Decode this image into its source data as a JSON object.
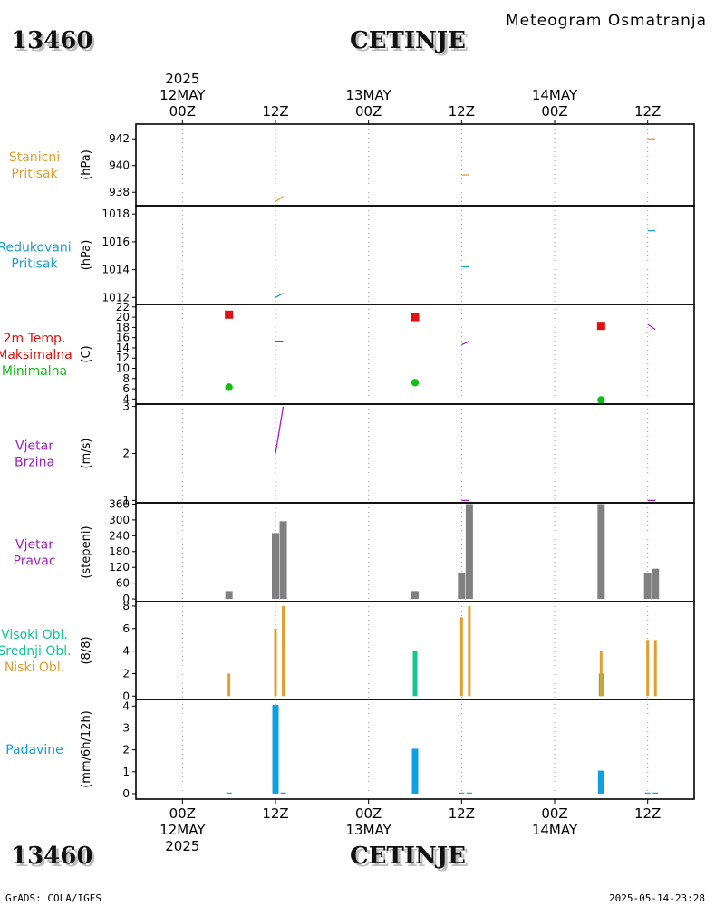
{
  "header": {
    "station_id": "13460",
    "station_name": "CETINJE",
    "subtitle": "Meteogram Osmatranja",
    "year": "2025"
  },
  "footer": {
    "station_id": "13460",
    "station_name": "CETINJE",
    "year": "2025",
    "software": "GrADS: COLA/IGES",
    "timestamp": "2025-05-14-23:28"
  },
  "colors": {
    "orange": "#e0a030",
    "cyan": "#1aa0d0",
    "red": "#e01010",
    "green": "#10c010",
    "purple": "#a020c0",
    "gray": "#808080",
    "teal": "#10c890",
    "blue": "#10a0e0"
  },
  "chart_data": {
    "type": "meteogram",
    "x_axis": {
      "unit": "hours since 2025-05-12 00Z",
      "range": [
        -6,
        66
      ],
      "top_ticks": [
        {
          "hour": 0,
          "label": "00Z",
          "date": "12MAY"
        },
        {
          "hour": 12,
          "label": "12Z",
          "date": ""
        },
        {
          "hour": 24,
          "label": "00Z",
          "date": "13MAY"
        },
        {
          "hour": 36,
          "label": "12Z",
          "date": ""
        },
        {
          "hour": 48,
          "label": "00Z",
          "date": "14MAY"
        },
        {
          "hour": 60,
          "label": "12Z",
          "date": ""
        }
      ]
    },
    "panels": [
      {
        "id": "stanicni",
        "labels": [
          {
            "text": "Stanicni",
            "color": "orange"
          },
          {
            "text": "Pritisak",
            "color": "orange"
          }
        ],
        "unit": "(hPa)",
        "ymin": 937,
        "ymax": 943.1,
        "ticks": [
          938,
          940,
          942
        ],
        "series": [
          {
            "type": "segments",
            "color": "orange",
            "data": [
              [
                12,
                937.3,
                13,
                937.7
              ],
              [
                36,
                939.3,
                37,
                939.3
              ],
              [
                60,
                942.0,
                61,
                942.0
              ]
            ]
          }
        ]
      },
      {
        "id": "redukovani",
        "labels": [
          {
            "text": "Redukovani",
            "color": "cyan"
          },
          {
            "text": "Pritisak",
            "color": "cyan"
          }
        ],
        "unit": "(hPa)",
        "ymin": 1011.5,
        "ymax": 1018.6,
        "ticks": [
          1012,
          1014,
          1016,
          1018
        ],
        "series": [
          {
            "type": "segments",
            "color": "cyan",
            "data": [
              [
                12,
                1012.0,
                13,
                1012.3
              ],
              [
                36,
                1014.2,
                37,
                1014.2
              ],
              [
                60,
                1016.8,
                61,
                1016.8
              ]
            ]
          }
        ]
      },
      {
        "id": "temperatura",
        "labels": [
          {
            "text": "2m Temp.",
            "color": "red"
          },
          {
            "text": "Maksimalna",
            "color": "red"
          },
          {
            "text": "Minimalna",
            "color": "green"
          }
        ],
        "unit": "(C)",
        "ymin": 3,
        "ymax": 22.5,
        "ticks": [
          4,
          6,
          8,
          10,
          12,
          14,
          16,
          18,
          20,
          22
        ],
        "series": [
          {
            "type": "segments",
            "color": "purple",
            "data": [
              [
                12,
                15.3,
                13,
                15.3
              ],
              [
                36,
                14.6,
                37,
                15.3
              ],
              [
                60,
                18.6,
                61,
                17.6
              ]
            ]
          },
          {
            "type": "squares",
            "color": "red",
            "data": [
              [
                6,
                20.5
              ],
              [
                30,
                20.0
              ],
              [
                54,
                18.3
              ]
            ]
          },
          {
            "type": "dots",
            "color": "green",
            "data": [
              [
                6,
                6.3
              ],
              [
                30,
                7.2
              ],
              [
                54,
                3.8
              ]
            ]
          }
        ]
      },
      {
        "id": "brzina",
        "labels": [
          {
            "text": "Vjetar",
            "color": "purple"
          },
          {
            "text": "Brzina",
            "color": "purple"
          }
        ],
        "unit": "(m/s)",
        "ymin": 0.95,
        "ymax": 3.05,
        "ticks": [
          1,
          2,
          3
        ],
        "series": [
          {
            "type": "segments",
            "color": "purple",
            "data": [
              [
                12,
                2.0,
                13,
                3.0
              ],
              [
                36,
                1.0,
                37,
                1.0
              ],
              [
                60,
                1.0,
                61,
                1.0
              ]
            ]
          }
        ]
      },
      {
        "id": "pravac",
        "labels": [
          {
            "text": "Vjetar",
            "color": "purple"
          },
          {
            "text": "Pravac",
            "color": "purple"
          }
        ],
        "unit": "(stepeni)",
        "ymin": -10,
        "ymax": 365,
        "ticks": [
          0,
          60,
          120,
          180,
          240,
          300,
          360
        ],
        "series": [
          {
            "type": "bars",
            "color": "gray",
            "width": 8,
            "data": [
              [
                6,
                30
              ],
              [
                12,
                250
              ],
              [
                13,
                295
              ],
              [
                30,
                30
              ],
              [
                36,
                100
              ],
              [
                37,
                360
              ],
              [
                54,
                360
              ],
              [
                60,
                100
              ],
              [
                61,
                115
              ]
            ]
          }
        ]
      },
      {
        "id": "oblaci",
        "labels": [
          {
            "text": "Visoki Obl.",
            "color": "teal"
          },
          {
            "text": "Srednji Obl.",
            "color": "teal"
          },
          {
            "text": "Niski Obl.",
            "color": "orange"
          }
        ],
        "unit": "(8/8)",
        "ymin": -0.3,
        "ymax": 8.4,
        "ticks": [
          0,
          2,
          4,
          6,
          8
        ],
        "series": [
          {
            "type": "bars",
            "color": "teal",
            "width": 5,
            "data": [
              [
                30,
                4
              ],
              [
                54,
                2
              ]
            ]
          },
          {
            "type": "bars",
            "color": "orange",
            "width": 3,
            "data": [
              [
                6,
                2
              ],
              [
                12,
                6
              ],
              [
                13,
                8
              ],
              [
                36,
                7
              ],
              [
                37,
                8
              ],
              [
                54,
                4
              ],
              [
                60,
                5
              ],
              [
                61,
                5
              ]
            ]
          }
        ]
      },
      {
        "id": "padavine",
        "labels": [
          {
            "text": "Padavine",
            "color": "blue"
          }
        ],
        "unit": "(mm/6h/12h)",
        "ymin": -0.25,
        "ymax": 4.3,
        "ticks": [
          0,
          1,
          2,
          3,
          4
        ],
        "series": [
          {
            "type": "bars",
            "color": "blue",
            "width": 7,
            "data": [
              [
                12,
                4.05
              ],
              [
                30,
                2.05
              ],
              [
                54,
                1.05
              ]
            ]
          },
          {
            "type": "bars",
            "color": "blue",
            "width": 6,
            "data": [
              [
                6,
                0.05
              ],
              [
                13,
                0.05
              ],
              [
                36,
                0.05
              ],
              [
                37,
                0.05
              ],
              [
                60,
                0.05
              ],
              [
                61,
                0.05
              ]
            ]
          }
        ]
      }
    ]
  }
}
